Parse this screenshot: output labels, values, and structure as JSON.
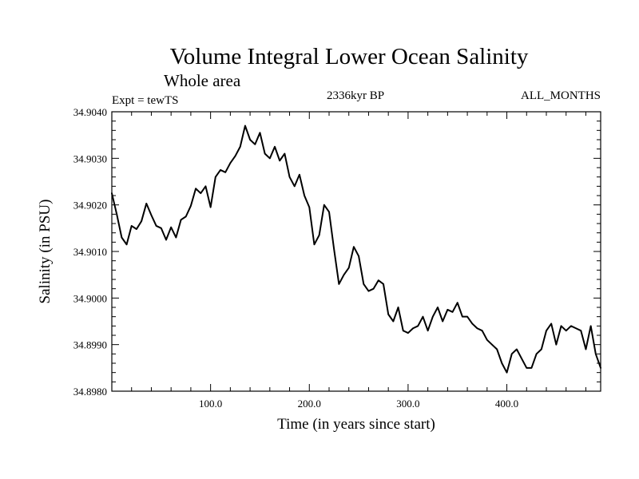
{
  "chart_data": {
    "type": "line",
    "title": "Volume Integral Lower Ocean Salinity",
    "subtitle": "Whole area",
    "experiment": "Expt = tewTS",
    "period": "2336kyr BP",
    "months": "ALL_MONTHS",
    "xlabel": "Time (in years since start)",
    "ylabel": "Salinity (in PSU)",
    "xlim": [
      0,
      495
    ],
    "ylim": [
      34.898,
      34.904
    ],
    "x_ticks": [
      100,
      200,
      300,
      400
    ],
    "x_tick_labels": [
      "100.0",
      "200.0",
      "300.0",
      "400.0"
    ],
    "y_ticks": [
      34.898,
      34.899,
      34.9,
      34.901,
      34.902,
      34.903,
      34.904
    ],
    "y_tick_labels": [
      "34.8980",
      "34.8990",
      "34.9000",
      "34.9010",
      "34.9020",
      "34.9030",
      "34.9040"
    ],
    "grid": false,
    "series": [
      {
        "name": "Volume Integral Lower Ocean Salinity",
        "color": "#000000",
        "x": [
          0,
          5,
          10,
          15,
          20,
          25,
          30,
          35,
          40,
          45,
          50,
          55,
          60,
          65,
          70,
          75,
          80,
          85,
          90,
          95,
          100,
          105,
          110,
          115,
          120,
          125,
          130,
          135,
          140,
          145,
          150,
          155,
          160,
          165,
          170,
          175,
          180,
          185,
          190,
          195,
          200,
          205,
          210,
          215,
          220,
          225,
          230,
          235,
          240,
          245,
          250,
          255,
          260,
          265,
          270,
          275,
          280,
          285,
          290,
          295,
          300,
          305,
          310,
          315,
          320,
          325,
          330,
          335,
          340,
          345,
          350,
          355,
          360,
          365,
          370,
          375,
          380,
          385,
          390,
          395,
          400,
          405,
          410,
          415,
          420,
          425,
          430,
          435,
          440,
          445,
          450,
          455,
          460,
          465,
          470,
          475,
          480,
          485,
          490,
          495
        ],
        "y": [
          34.90225,
          34.9018,
          34.9013,
          34.90115,
          34.90155,
          34.90148,
          34.90165,
          34.90203,
          34.90178,
          34.90155,
          34.9015,
          34.90125,
          34.90152,
          34.9013,
          34.90168,
          34.90175,
          34.90198,
          34.90235,
          34.90225,
          34.9024,
          34.90195,
          34.9026,
          34.90275,
          34.9027,
          34.9029,
          34.90305,
          34.90325,
          34.9037,
          34.9034,
          34.9033,
          34.90355,
          34.9031,
          34.903,
          34.90325,
          34.90295,
          34.9031,
          34.9026,
          34.9024,
          34.90265,
          34.9022,
          34.90195,
          34.90115,
          34.90135,
          34.902,
          34.90185,
          34.90105,
          34.9003,
          34.9005,
          34.90065,
          34.9011,
          34.9009,
          34.9003,
          34.90015,
          34.9002,
          34.90038,
          34.9003,
          34.89965,
          34.8995,
          34.8998,
          34.8993,
          34.89925,
          34.89935,
          34.8994,
          34.8996,
          34.8993,
          34.8996,
          34.8998,
          34.8995,
          34.89975,
          34.8997,
          34.8999,
          34.8996,
          34.8996,
          34.89945,
          34.89935,
          34.8993,
          34.8991,
          34.899,
          34.8989,
          34.8986,
          34.8984,
          34.8988,
          34.8989,
          34.8987,
          34.8985,
          34.8985,
          34.8988,
          34.8989,
          34.8993,
          34.89945,
          34.899,
          34.8994,
          34.8993,
          34.8994,
          34.89935,
          34.8993,
          34.8989,
          34.8994,
          34.8988,
          34.8985
        ]
      }
    ]
  }
}
